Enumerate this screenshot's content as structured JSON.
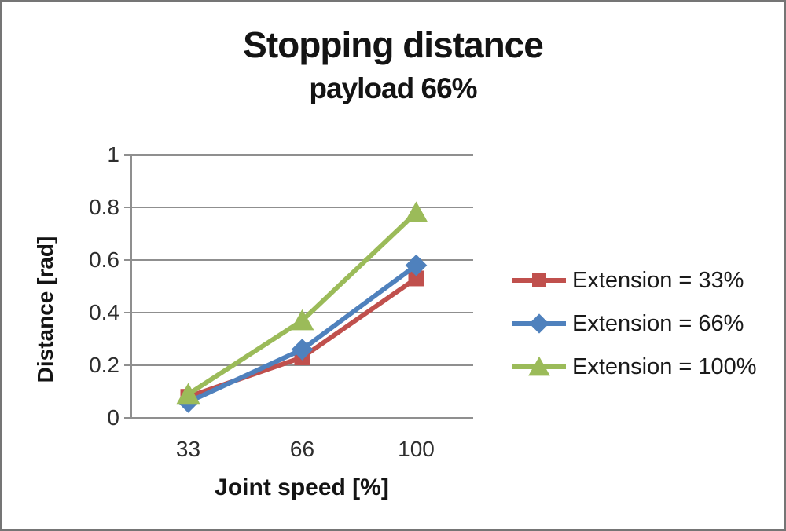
{
  "chart_data": {
    "type": "line",
    "title": "Stopping distance",
    "subtitle": "payload 66%",
    "xlabel": "Joint speed [%]",
    "ylabel": "Distance [rad]",
    "categories": [
      "33",
      "66",
      "100"
    ],
    "x": [
      33,
      66,
      100
    ],
    "series": [
      {
        "name": "Extension = 33%",
        "values": [
          0.08,
          0.23,
          0.53
        ],
        "color": "#C0504D",
        "marker": "square"
      },
      {
        "name": "Extension = 66%",
        "values": [
          0.06,
          0.26,
          0.58
        ],
        "color": "#4F81BD",
        "marker": "diamond"
      },
      {
        "name": "Extension = 100%",
        "values": [
          0.09,
          0.37,
          0.78
        ],
        "color": "#9BBB59",
        "marker": "triangle"
      }
    ],
    "ylim": [
      0,
      1
    ],
    "yticks": [
      0,
      0.2,
      0.4,
      0.6,
      0.8,
      1
    ],
    "grid": true,
    "legend_position": "right"
  },
  "colors": {
    "gridline": "#8F8F8F",
    "axis": "#8F8F8F",
    "border": "#757575",
    "background": "#FFFFFF",
    "text": "#141414"
  }
}
